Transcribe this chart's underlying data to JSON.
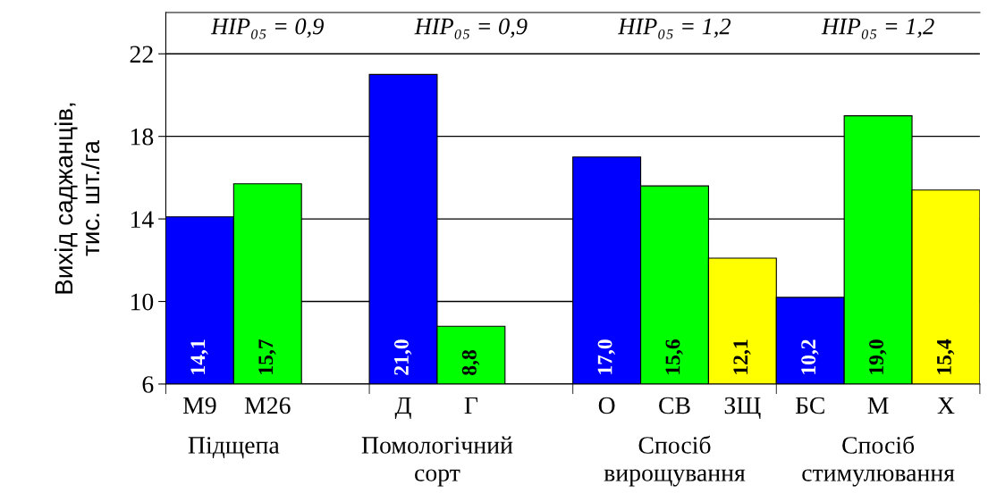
{
  "chart_data": {
    "type": "bar",
    "ylabel": "Вихід саджанців,\nтис. шт./га",
    "categories": [
      "М9",
      "М26",
      null,
      "Д",
      "Г",
      null,
      "О",
      "СВ",
      "ЗЩ",
      "БС",
      "М",
      "Х"
    ],
    "values": [
      14.1,
      15.7,
      null,
      21.0,
      8.8,
      null,
      17.0,
      15.6,
      12.1,
      10.2,
      19.0,
      15.4
    ],
    "colors": [
      "#0000ff",
      "#00ff00",
      "#00ff00",
      "#0000ff",
      "#00ff00",
      "#00ff00",
      "#0000ff",
      "#00ff00",
      "#ffff00",
      "#0000ff",
      "#00ff00",
      "#ffff00"
    ],
    "value_labels": [
      "14,1",
      "15,7",
      null,
      "21,0",
      "8,8",
      null,
      "17,0",
      "15,6",
      "12,1",
      "10,2",
      "19,0",
      "15,4"
    ],
    "annotations": [
      "НІР₀₅ = 0,9",
      "НІР₀₅ = 0,9",
      "НІР₀₅ = 1,2",
      "НІР₀₅ = 1,2",
      "Підщепа",
      "Помологічний\nсорт",
      "Спосіб\nвирощування",
      "Спосіб\nстимулювання"
    ],
    "ylim": [
      6,
      24
    ],
    "yticks": [
      6,
      10,
      14,
      18,
      22
    ],
    "grid": "y"
  }
}
